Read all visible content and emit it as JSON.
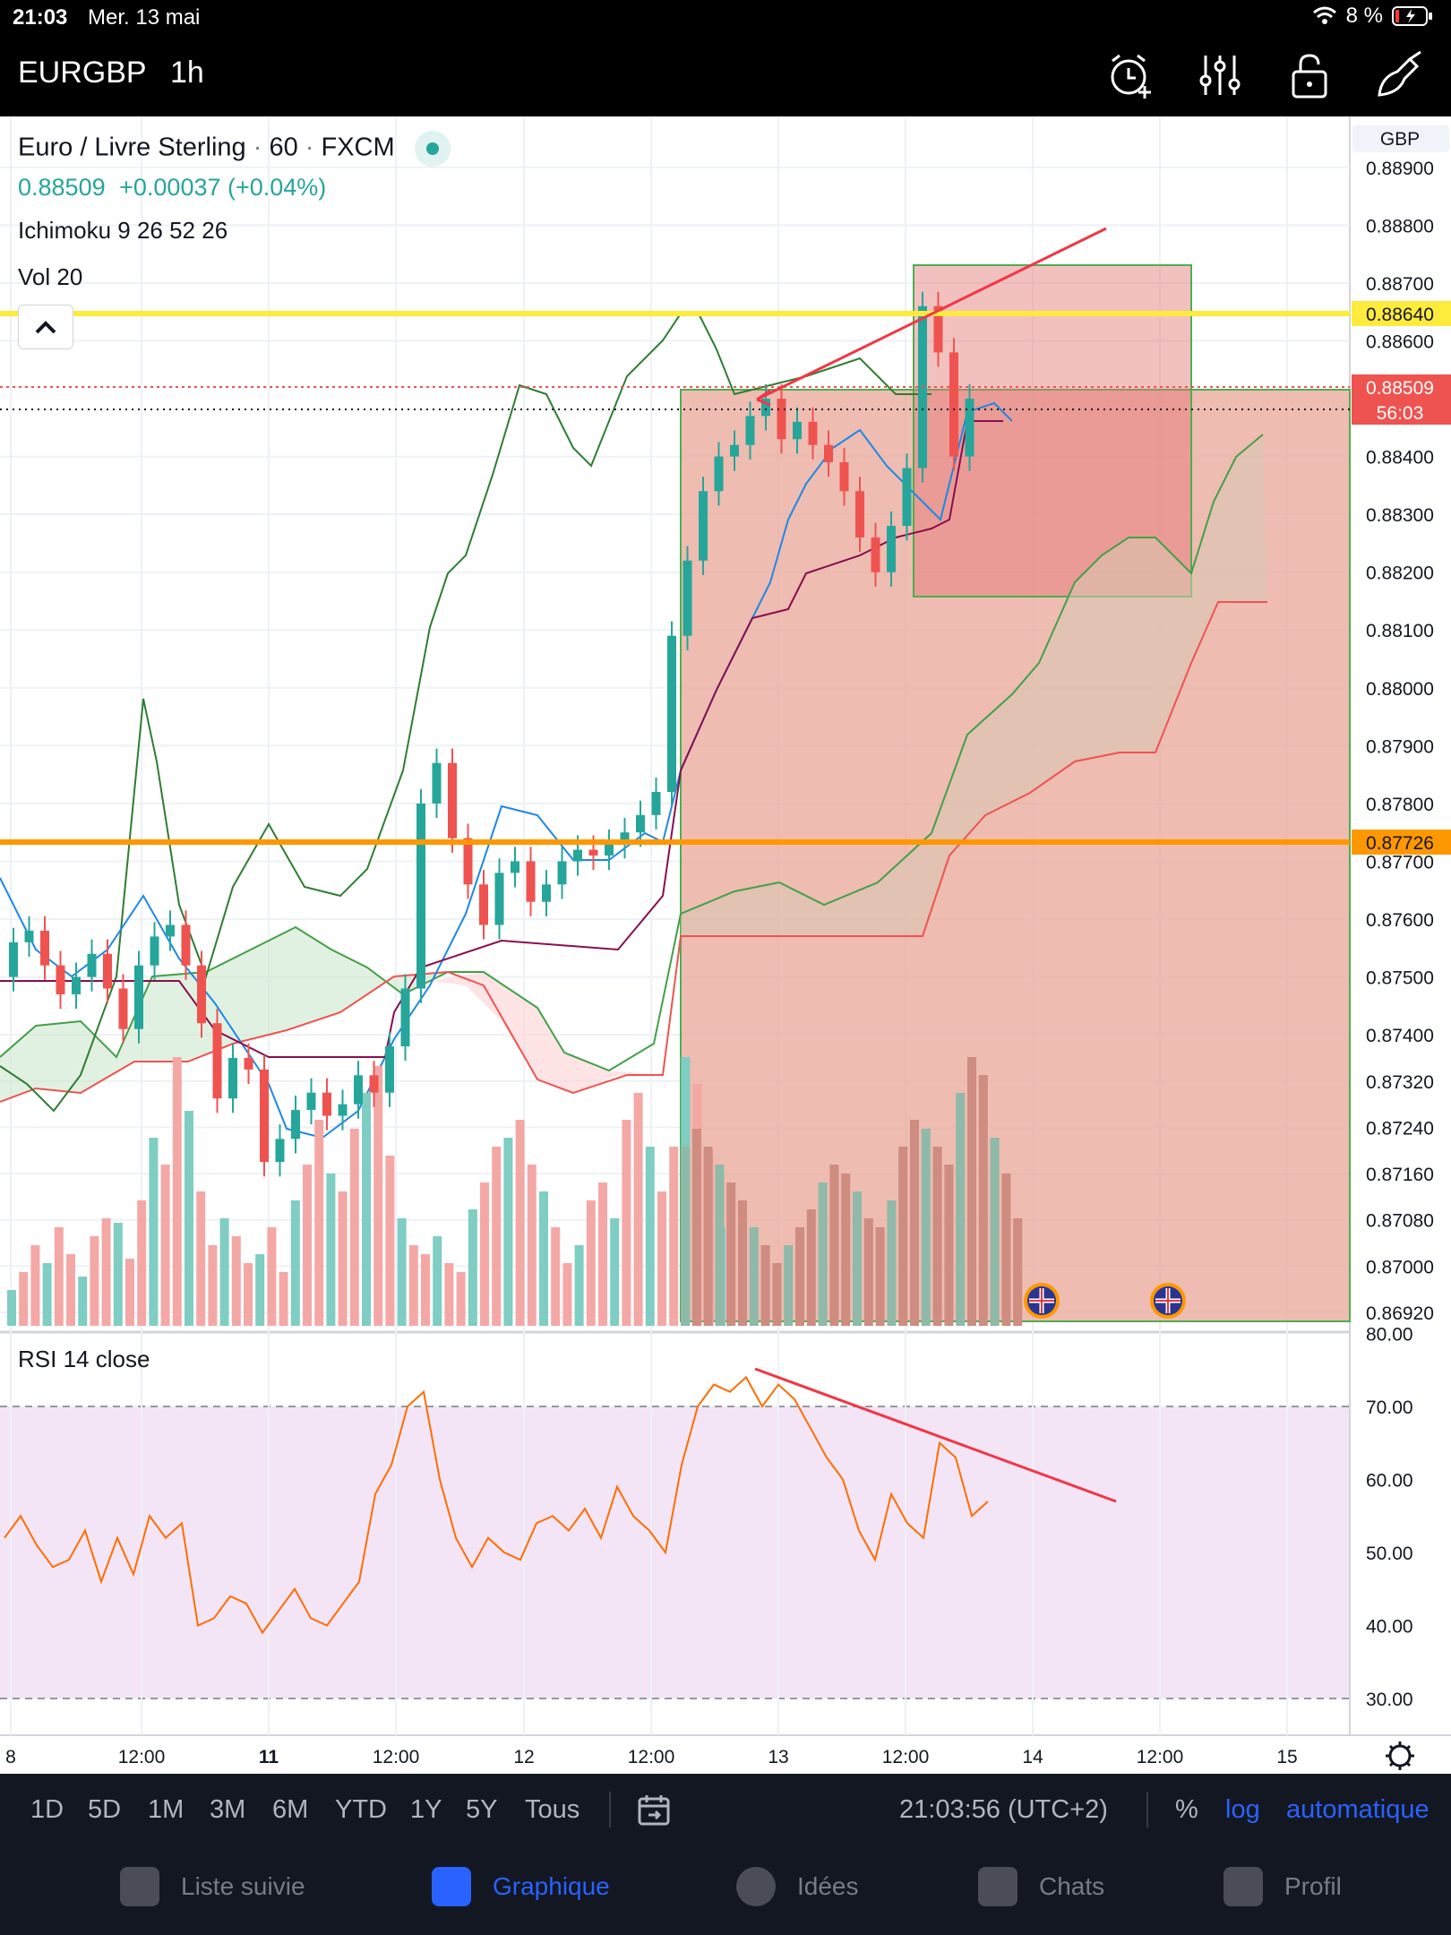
{
  "status_bar": {
    "time": "21:03",
    "date": "Mer. 13 mai",
    "battery": "8 %"
  },
  "header": {
    "symbol": "EURGBP",
    "timeframe": "1h",
    "icons": [
      "alarm-add-icon",
      "indicators-icon",
      "lock-icon",
      "drawing-tools-icon"
    ]
  },
  "legend": {
    "title": "Euro / Livre Sterling",
    "interval": "60",
    "exchange": "FXCM",
    "price": "0.88509",
    "change": "+0.00037 (+0.04%)",
    "ichimoku": "Ichimoku 9 26 52 26",
    "volume": "Vol 20",
    "rsi": "RSI 14 close"
  },
  "price_axis": {
    "currency": "GBP",
    "labels": [
      "0.88900",
      "0.88800",
      "0.88700",
      "0.88600",
      "0.88400",
      "0.88300",
      "0.88200",
      "0.88100",
      "0.88000",
      "0.87900",
      "0.87800",
      "0.87700",
      "0.87600",
      "0.87500",
      "0.87400",
      "0.87320",
      "0.87240",
      "0.87160",
      "0.87080",
      "0.87000",
      "0.86920"
    ],
    "badges": {
      "yellow_level": "0.88640",
      "last_price": "0.88509",
      "countdown": "56:03",
      "orange_level": "0.87726"
    }
  },
  "rsi_axis": {
    "labels": [
      "80.00",
      "70.00",
      "60.00",
      "50.00",
      "40.00",
      "30.00"
    ]
  },
  "time_axis": {
    "labels": [
      "8",
      "12:00",
      "11",
      "12:00",
      "12",
      "12:00",
      "13",
      "12:00",
      "14",
      "12:00",
      "15"
    ]
  },
  "timeframe_bar": {
    "ranges": [
      "1D",
      "5D",
      "1M",
      "3M",
      "6M",
      "YTD",
      "1Y",
      "5Y",
      "Tous"
    ],
    "clock": "21:03:56 (UTC+2)",
    "percent": "%",
    "log": "log",
    "auto": "automatique"
  },
  "nav": {
    "items": [
      {
        "label": "Liste suivie",
        "icon": "watchlist-icon"
      },
      {
        "label": "Graphique",
        "icon": "chart-icon"
      },
      {
        "label": "Idées",
        "icon": "ideas-icon"
      },
      {
        "label": "Chats",
        "icon": "chats-icon"
      },
      {
        "label": "Profil",
        "icon": "profile-icon"
      }
    ]
  },
  "colors": {
    "bull": "#26a69a",
    "bear": "#ef5350",
    "yellow_line": "#ffeb3b",
    "orange_line": "#ff9800",
    "rsi_line": "#ff6d00",
    "rsi_band": "#f3e5f5",
    "nav_active": "#2962ff"
  },
  "chart_data": {
    "type": "candlestick",
    "series": [
      {
        "name": "EURGBP",
        "closes": [
          0.8756,
          0.8758,
          0.8752,
          0.8747,
          0.875,
          0.8754,
          0.8748,
          0.8741,
          0.8752,
          0.8757,
          0.8759,
          0.8752,
          0.8742,
          0.8729,
          0.8736,
          0.8734,
          0.8718,
          0.8722,
          0.8727,
          0.873,
          0.8726,
          0.8728,
          0.8733,
          0.873,
          0.8738,
          0.8748,
          0.878,
          0.8787,
          0.8774,
          0.8766,
          0.8759,
          0.8768,
          0.877,
          0.8763,
          0.8766,
          0.877,
          0.8772,
          0.8771,
          0.8773,
          0.8775,
          0.8778,
          0.8782,
          0.8809,
          0.8822,
          0.8834,
          0.884,
          0.8842,
          0.8847,
          0.885,
          0.8843,
          0.8846,
          0.8842,
          0.8839,
          0.8834,
          0.8826,
          0.882,
          0.8828,
          0.8838,
          0.8866,
          0.8858,
          0.884,
          0.885
        ]
      }
    ],
    "indicators": {
      "ichimoku": "9 26 52 26",
      "volume": "20",
      "rsi": {
        "period": 14,
        "levels": [
          30,
          70
        ],
        "ylim": [
          30,
          80
        ]
      }
    },
    "ylim": [
      0.8692,
      0.8892
    ]
  }
}
